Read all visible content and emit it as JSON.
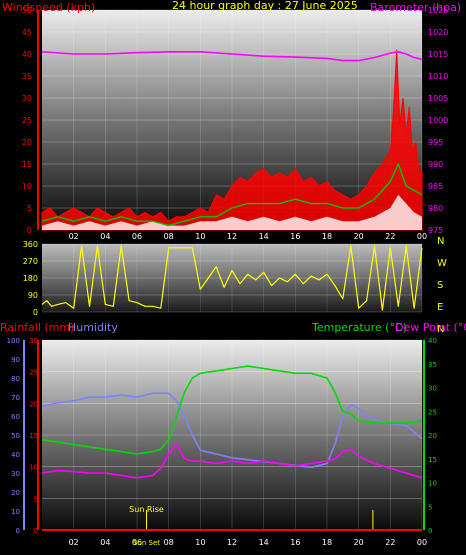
{
  "title": "24 hour graph day : 27 June 2025",
  "colors": {
    "wind": "#ff0000",
    "gust": "#ffffff",
    "avg_wind": "#00c800",
    "barometer": "#ff00ff",
    "direction": "#ffff00",
    "rain": "#ff0000",
    "humidity": "#8080ff",
    "temperature": "#00dc00",
    "dew_point": "#ff00ff",
    "yellow_text": "#ffff00"
  },
  "chart_data": [
    {
      "type": "line",
      "ylabel": "Windspeed (kph)",
      "y2label": "Barometer (hpa)",
      "x_tick_labels": [
        "02",
        "04",
        "06",
        "08",
        "10",
        "12",
        "14",
        "16",
        "18",
        "20",
        "22",
        "00"
      ],
      "y_ticks": [
        0,
        5,
        10,
        15,
        20,
        25,
        30,
        35,
        40,
        45,
        50
      ],
      "y2_ticks": [
        975,
        980,
        985,
        990,
        995,
        1000,
        1005,
        1010,
        1015,
        1020,
        1025
      ],
      "ylim": [
        0,
        50
      ],
      "y2lim": [
        975,
        1025
      ],
      "xlim": [
        0,
        24
      ],
      "series": [
        {
          "role": "wind",
          "x": [
            0,
            0.5,
            1,
            1.5,
            2,
            2.5,
            3,
            3.5,
            4,
            4.5,
            5,
            5.5,
            6,
            6.5,
            7,
            7.5,
            8,
            8.5,
            9,
            9.5,
            10,
            10.5,
            11,
            11.5,
            12,
            12.5,
            13,
            13.5,
            14,
            14.5,
            15,
            15.5,
            16,
            16.5,
            17,
            17.5,
            18,
            18.5,
            19,
            19.5,
            20,
            20.5,
            21,
            21.5,
            22,
            22.2,
            22.4,
            22.6,
            22.8,
            23,
            23.2,
            23.4,
            23.6,
            23.8,
            24
          ],
          "values": [
            4,
            5,
            3,
            4,
            5,
            4,
            3,
            5,
            4,
            3,
            4,
            5,
            3,
            4,
            3,
            4,
            2,
            3,
            3,
            4,
            5,
            4,
            8,
            7,
            10,
            12,
            11,
            13,
            14,
            12,
            13,
            12,
            14,
            11,
            12,
            10,
            11,
            9,
            8,
            7,
            8,
            10,
            13,
            15,
            18,
            27,
            41,
            24,
            30,
            22,
            28,
            18,
            20,
            14,
            13
          ]
        },
        {
          "role": "gust",
          "x": [
            0,
            1,
            2,
            3,
            4,
            5,
            6,
            7,
            8,
            9,
            10,
            11,
            12,
            13,
            14,
            15,
            16,
            17,
            18,
            19,
            20,
            21,
            22,
            22.5,
            23,
            23.5,
            24
          ],
          "values": [
            1,
            2,
            1,
            2,
            1,
            2,
            1,
            2,
            1,
            1,
            2,
            2,
            3,
            2,
            3,
            2,
            3,
            2,
            3,
            2,
            2,
            3,
            5,
            8,
            6,
            4,
            3
          ]
        },
        {
          "role": "avg_wind",
          "x": [
            0,
            1,
            2,
            3,
            4,
            5,
            6,
            7,
            8,
            9,
            10,
            11,
            12,
            13,
            14,
            15,
            16,
            17,
            18,
            19,
            20,
            21,
            22,
            22.5,
            23,
            23.5,
            24
          ],
          "values": [
            2,
            3,
            2,
            3,
            2,
            3,
            2,
            2,
            1,
            2,
            3,
            3,
            5,
            6,
            6,
            6,
            7,
            6,
            6,
            5,
            5,
            7,
            11,
            15,
            10,
            9,
            8
          ]
        },
        {
          "role": "barometer",
          "x": [
            0,
            2,
            4,
            6,
            8,
            10,
            12,
            14,
            16,
            18,
            19,
            20,
            21,
            22,
            22.5,
            23,
            23.5,
            24
          ],
          "values": [
            1015.5,
            1015.0,
            1015.0,
            1015.3,
            1015.5,
            1015.5,
            1015.0,
            1014.5,
            1014.3,
            1014.0,
            1013.5,
            1013.5,
            1014.2,
            1015.2,
            1015.5,
            1015.0,
            1014.2,
            1013.8
          ]
        }
      ]
    },
    {
      "type": "line",
      "y_ticks": [
        0,
        90,
        180,
        270,
        360
      ],
      "ylim": [
        0,
        360
      ],
      "xlim": [
        0,
        24
      ],
      "compass_labels": [
        "N",
        "W",
        "S",
        "E",
        "N"
      ],
      "series": [
        {
          "role": "direction",
          "x": [
            0,
            0.3,
            0.6,
            1,
            1.5,
            2,
            2.5,
            3,
            3.5,
            4,
            4.5,
            5,
            5.5,
            6,
            6.5,
            7,
            7.5,
            8,
            8.5,
            9,
            9.5,
            10,
            10.5,
            11,
            11.5,
            12,
            12.5,
            13,
            13.5,
            14,
            14.5,
            15,
            15.5,
            16,
            16.5,
            17,
            17.5,
            18,
            18.5,
            19,
            19.5,
            20,
            20.5,
            21,
            21.5,
            22,
            22.5,
            23,
            23.5,
            24
          ],
          "values": [
            40,
            60,
            30,
            40,
            50,
            20,
            350,
            30,
            350,
            40,
            30,
            350,
            60,
            50,
            30,
            30,
            20,
            340,
            340,
            340,
            340,
            120,
            180,
            240,
            130,
            220,
            150,
            200,
            170,
            210,
            140,
            180,
            160,
            200,
            150,
            190,
            170,
            200,
            140,
            70,
            350,
            20,
            60,
            350,
            10,
            340,
            30,
            350,
            20,
            340
          ]
        }
      ]
    },
    {
      "type": "line",
      "ylabel": "Rainfall (mm)",
      "y2label": "Humidity",
      "y3label": "Temperature (°C)",
      "y4label": "Dew Point (°C)",
      "x_tick_labels": [
        "02",
        "04",
        "06",
        "08",
        "10",
        "12",
        "14",
        "16",
        "18",
        "20",
        "22",
        "00"
      ],
      "humidity_ticks": [
        0,
        10,
        20,
        30,
        40,
        50,
        60,
        70,
        80,
        90,
        100
      ],
      "rain_ticks": [
        0,
        5,
        10,
        15,
        20,
        25,
        30
      ],
      "temp_ticks": [
        0,
        5,
        10,
        15,
        20,
        25,
        30,
        35,
        40
      ],
      "rain_lim": [
        0,
        30
      ],
      "humidity_lim": [
        0,
        100
      ],
      "temp_lim": [
        0,
        40
      ],
      "xlim": [
        0,
        24
      ],
      "sunrise_label": "Sun Rise",
      "sunset_label": "Sun Set",
      "sunrise_hour": 6.6,
      "sunset_hour": 20.9,
      "series": [
        {
          "role": "rain",
          "x": [
            0,
            24
          ],
          "values": [
            0,
            0
          ]
        },
        {
          "role": "humidity",
          "x": [
            0,
            1,
            2,
            3,
            4,
            5,
            6,
            7,
            8,
            8.5,
            9,
            9.5,
            10,
            11,
            12,
            13,
            14,
            15,
            16,
            17,
            18,
            18.5,
            19,
            19.5,
            20,
            20.5,
            21,
            22,
            23,
            24
          ],
          "values": [
            65,
            67,
            68,
            70,
            70,
            71,
            70,
            72,
            72,
            68,
            60,
            50,
            42,
            40,
            38,
            37,
            36,
            35,
            34,
            33,
            35,
            45,
            60,
            66,
            64,
            60,
            58,
            56,
            55,
            48
          ]
        },
        {
          "role": "temperature",
          "x": [
            0,
            1,
            2,
            3,
            4,
            5,
            6,
            7,
            7.5,
            8,
            8.5,
            9,
            9.5,
            10,
            11,
            12,
            13,
            14,
            15,
            16,
            17,
            18,
            18.5,
            19,
            19.5,
            20,
            21,
            22,
            23,
            24
          ],
          "values": [
            19,
            18.5,
            18,
            17.5,
            17,
            16.5,
            16,
            16.5,
            17,
            19,
            24,
            29,
            32,
            33,
            33.5,
            34,
            34.5,
            34,
            33.5,
            33,
            33,
            32,
            29,
            25,
            24.5,
            23,
            22.5,
            22.5,
            22.5,
            23
          ]
        },
        {
          "role": "dew_point",
          "x": [
            0,
            1,
            2,
            3,
            4,
            5,
            6,
            7,
            7.5,
            8,
            8.5,
            9,
            9.5,
            10,
            11,
            12,
            13,
            14,
            15,
            16,
            17,
            18,
            18.5,
            19,
            19.5,
            20,
            21,
            22,
            23,
            24
          ],
          "values": [
            12,
            12.5,
            12.3,
            12,
            12,
            11.5,
            11,
            11.5,
            13,
            16,
            18,
            15,
            14.5,
            14.5,
            14,
            14.5,
            14,
            14.5,
            14,
            13.5,
            14,
            14.5,
            15,
            16.5,
            17,
            15.5,
            14,
            13,
            12,
            11
          ]
        }
      ]
    }
  ]
}
